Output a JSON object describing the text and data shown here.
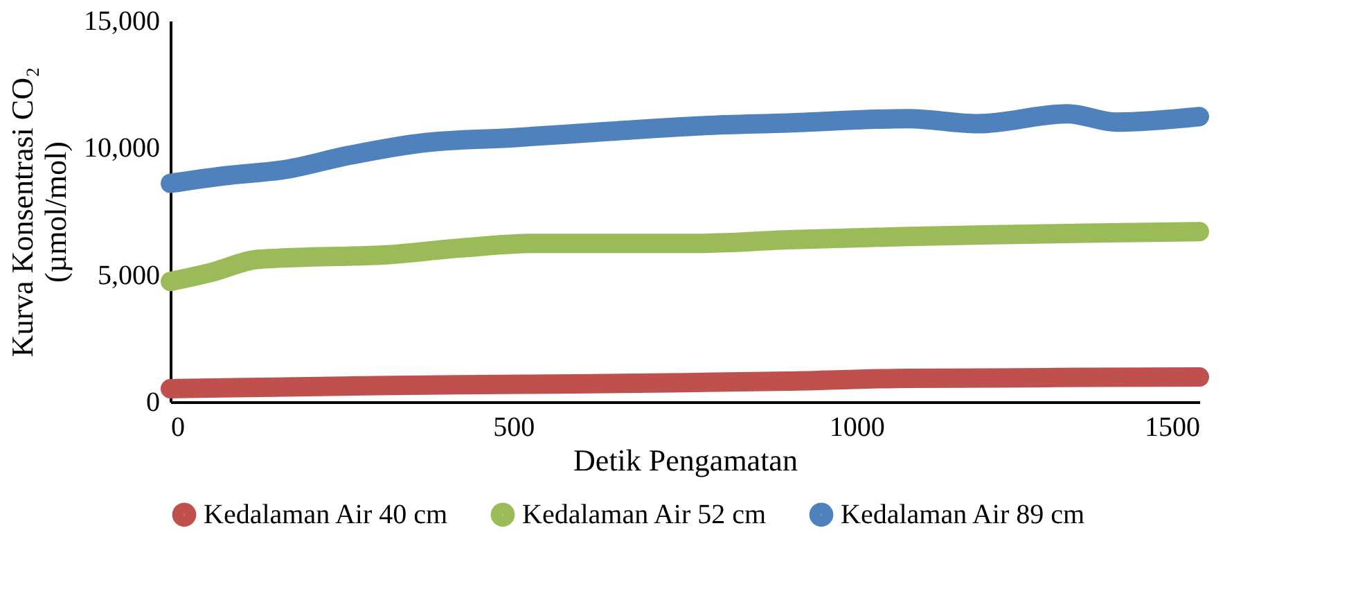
{
  "chart_data": {
    "type": "line",
    "xlabel": "Detik Pengamatan",
    "ylabel": "Kurva Konsentrasi CO₂\n(µmol/mol)",
    "xlim": [
      0,
      1500
    ],
    "xticks": [
      0,
      500,
      1000,
      1500
    ],
    "ylim": [
      0,
      15000
    ],
    "yticks": [
      0,
      {
        "value": 5000,
        "label": "5,000"
      },
      {
        "value": 10000,
        "label": "10,000"
      },
      {
        "value": 15000,
        "label": "15,000"
      }
    ],
    "grid": false,
    "legend": "bottom",
    "marker": "none",
    "line_style": "solid",
    "series": [
      {
        "name": "Kedalaman Air 40 cm",
        "color": "#c0504d",
        "x": [
          0,
          150,
          300,
          450,
          590,
          750,
          900,
          1076,
          1200,
          1350,
          1500
        ],
        "values": [
          520,
          580,
          640,
          680,
          710,
          760,
          820,
          930,
          940,
          970,
          980
        ]
      },
      {
        "name": "Kedalaman Air 52 cm",
        "color": "#9bbb59",
        "x": [
          0,
          60,
          127,
          200,
          309,
          420,
          531,
          650,
          773,
          900,
          1076,
          1200,
          1350,
          1500
        ],
        "values": [
          4740,
          5100,
          5610,
          5700,
          5780,
          6050,
          6240,
          6240,
          6240,
          6380,
          6510,
          6580,
          6650,
          6700
        ]
      },
      {
        "name": "Kedalaman Air 89 cm",
        "color": "#4f81bd",
        "x": [
          0,
          80,
          168,
          260,
          370,
          500,
          640,
          773,
          900,
          1076,
          1177,
          1308,
          1379,
          1500
        ],
        "values": [
          8600,
          8900,
          9150,
          9700,
          10200,
          10400,
          10650,
          10870,
          10980,
          11150,
          10950,
          11340,
          11010,
          11230
        ]
      }
    ]
  }
}
